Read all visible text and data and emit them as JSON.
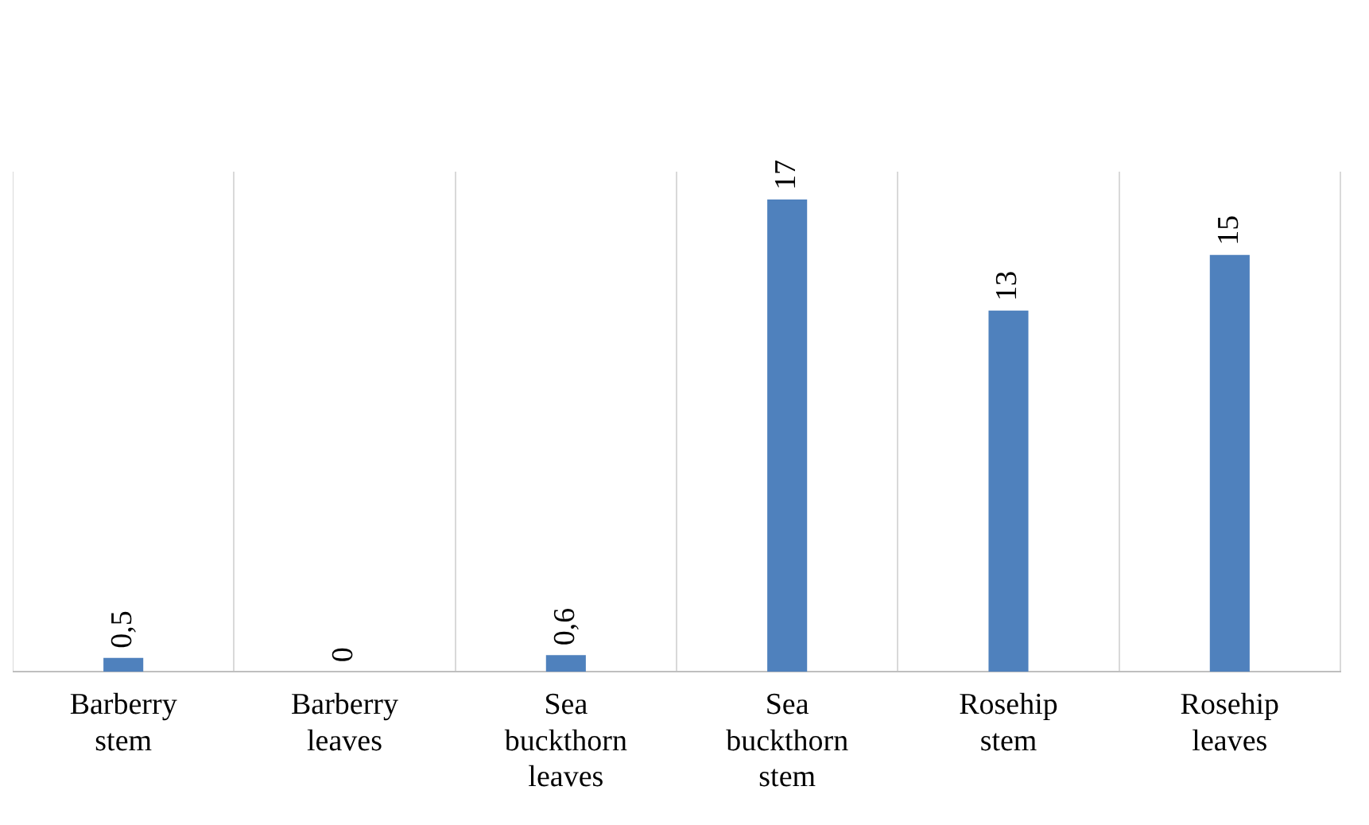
{
  "chart_data": {
    "type": "bar",
    "categories": [
      "Barberry stem",
      "Barberry leaves",
      "Sea buckthorn leaves",
      "Sea buckthorn stem",
      "Rosehip stem",
      "Rosehip leaves"
    ],
    "values": [
      0.5,
      0,
      0.6,
      17,
      13,
      15
    ],
    "value_labels": [
      "0,5",
      "0",
      "0,6",
      "17",
      "13",
      "15"
    ],
    "color": "#4f81bd",
    "grid": "x",
    "tick_labels": "x"
  }
}
